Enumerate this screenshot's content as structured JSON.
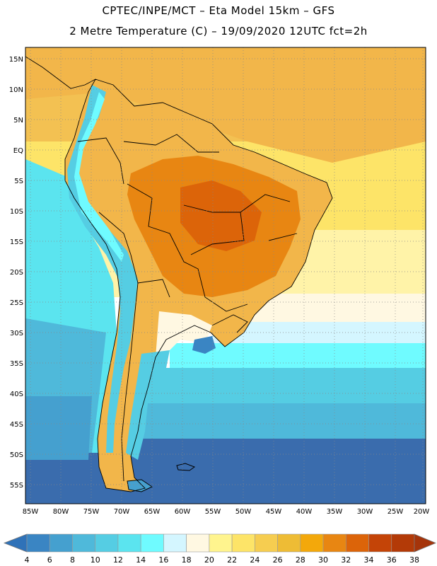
{
  "title": {
    "line1": "CPTEC/INPE/MCT –  Eta Model 15km – GFS",
    "line2": "2 Metre Temperature (C) – 19/09/2020 12UTC fct=2h"
  },
  "map": {
    "lat_labels": [
      "15N",
      "10N",
      "5N",
      "EQ",
      "5S",
      "10S",
      "15S",
      "20S",
      "25S",
      "30S",
      "35S",
      "40S",
      "45S",
      "50S",
      "55S"
    ],
    "lon_labels": [
      "85W",
      "80W",
      "75W",
      "70W",
      "65W",
      "60W",
      "55W",
      "50W",
      "45W",
      "40W",
      "35W",
      "30W",
      "25W",
      "20W"
    ],
    "lat_range": [
      16.5,
      -57.5
    ],
    "lon_range": [
      -85.5,
      -20
    ],
    "gridlines": "dotted"
  },
  "legend": {
    "values": [
      "4",
      "6",
      "8",
      "10",
      "12",
      "14",
      "16",
      "18",
      "20",
      "22",
      "24",
      "26",
      "28",
      "30",
      "32",
      "34",
      "36",
      "38"
    ],
    "colors": [
      "#2f72b8",
      "#3a85c3",
      "#45a0cf",
      "#4fb9da",
      "#55cde3",
      "#5be4ef",
      "#6ffbff",
      "#d4f6ff",
      "#fff8e2",
      "#fff48e",
      "#fde468",
      "#f6cd50",
      "#eebc35",
      "#f3a80b",
      "#e88612",
      "#dc6409",
      "#c44407",
      "#b33a07",
      "#a5340a"
    ]
  },
  "colors": {
    "land": "#f2b64a",
    "land_hot": "#e88612",
    "land_hottest": "#dc6409",
    "ocean_warm": "#fde468",
    "ocean_mid": "#5be4ef",
    "ocean_cold": "#3a6cad",
    "andes": "#55cde3"
  }
}
